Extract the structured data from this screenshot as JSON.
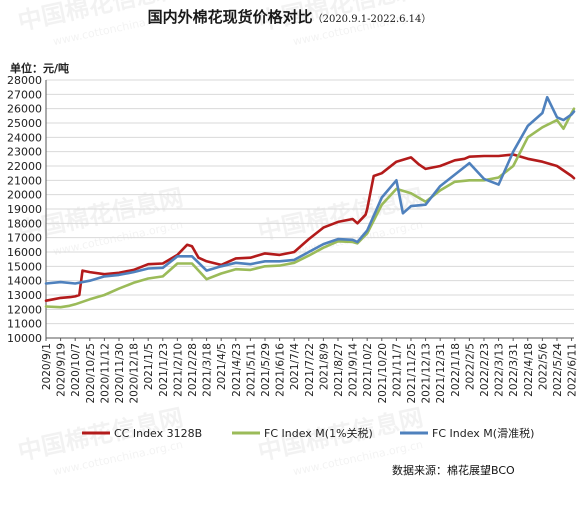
{
  "title": "国内外棉花现货价格对比",
  "subtitle": "（2020.9.1-2022.6.14）",
  "unit_label": "单位：元/吨",
  "source": "数据来源：棉花展望BCO",
  "watermark": [
    "中国棉花信息网",
    "www.cottonchina.org.cn"
  ],
  "colors": {
    "cc": "#b31b1b",
    "fc1": "#9bbb59",
    "fcs": "#4f81bd",
    "grid": "#d9d9d9",
    "axis": "#555555"
  },
  "chart_data": {
    "type": "line",
    "ylim": [
      10000,
      28000
    ],
    "ytick_step": 1000,
    "x_ticks": [
      "2020/9/1",
      "2020/9/19",
      "2020/10/7",
      "2020/10/25",
      "2020/11/12",
      "2020/11/30",
      "2020/12/18",
      "2021/1/5",
      "2021/1/23",
      "2021/2/10",
      "2021/2/28",
      "2021/3/18",
      "2021/4/5",
      "2021/4/23",
      "2021/5/11",
      "2021/5/29",
      "2021/6/16",
      "2021/7/4",
      "2021/7/22",
      "2021/8/9",
      "2021/8/27",
      "2021/9/14",
      "2021/10/2",
      "2021/10/20",
      "2021/11/7",
      "2021/11/25",
      "2021/12/13",
      "2021/12/31",
      "2022/1/18",
      "2022/2/5",
      "2022/2/23",
      "2022/3/13",
      "2022/3/31",
      "2022/4/18",
      "2022/5/6",
      "2022/5/24",
      "2022/6/11"
    ],
    "x_range": [
      "2020/9/1",
      "2022/6/14"
    ],
    "legend_position": "bottom",
    "series": [
      {
        "name": "CC Index 3128B",
        "color": "#b31b1b",
        "points": [
          [
            "2020/9/1",
            12600
          ],
          [
            "2020/9/10",
            12700
          ],
          [
            "2020/9/19",
            12800
          ],
          [
            "2020/10/1",
            12850
          ],
          [
            "2020/10/7",
            12900
          ],
          [
            "2020/10/12",
            13000
          ],
          [
            "2020/10/16",
            14700
          ],
          [
            "2020/10/25",
            14600
          ],
          [
            "2020/11/12",
            14450
          ],
          [
            "2020/11/30",
            14550
          ],
          [
            "2020/12/18",
            14750
          ],
          [
            "2021/1/5",
            15150
          ],
          [
            "2021/1/23",
            15200
          ],
          [
            "2021/2/10",
            15800
          ],
          [
            "2021/2/22",
            16500
          ],
          [
            "2021/2/28",
            16400
          ],
          [
            "2021/3/8",
            15600
          ],
          [
            "2021/3/18",
            15350
          ],
          [
            "2021/4/5",
            15100
          ],
          [
            "2021/4/23",
            15550
          ],
          [
            "2021/5/11",
            15600
          ],
          [
            "2021/5/29",
            15900
          ],
          [
            "2021/6/16",
            15800
          ],
          [
            "2021/7/4",
            16000
          ],
          [
            "2021/7/22",
            16900
          ],
          [
            "2021/8/9",
            17700
          ],
          [
            "2021/8/27",
            18100
          ],
          [
            "2021/9/14",
            18300
          ],
          [
            "2021/9/20",
            18000
          ],
          [
            "2021/9/30",
            18600
          ],
          [
            "2021/10/2",
            19000
          ],
          [
            "2021/10/10",
            21300
          ],
          [
            "2021/10/20",
            21500
          ],
          [
            "2021/11/7",
            22300
          ],
          [
            "2021/11/25",
            22600
          ],
          [
            "2021/12/5",
            22100
          ],
          [
            "2021/12/13",
            21800
          ],
          [
            "2021/12/31",
            22000
          ],
          [
            "2022/1/18",
            22400
          ],
          [
            "2022/1/30",
            22500
          ],
          [
            "2022/2/5",
            22650
          ],
          [
            "2022/2/23",
            22700
          ],
          [
            "2022/3/13",
            22700
          ],
          [
            "2022/3/31",
            22800
          ],
          [
            "2022/4/18",
            22500
          ],
          [
            "2022/5/6",
            22300
          ],
          [
            "2022/5/24",
            22000
          ],
          [
            "2022/6/11",
            21300
          ],
          [
            "2022/6/14",
            21150
          ]
        ]
      },
      {
        "name": "FC Index M(1%关税)",
        "color": "#9bbb59",
        "points": [
          [
            "2020/9/1",
            12200
          ],
          [
            "2020/9/19",
            12150
          ],
          [
            "2020/9/30",
            12250
          ],
          [
            "2020/10/7",
            12350
          ],
          [
            "2020/10/25",
            12700
          ],
          [
            "2020/11/12",
            13000
          ],
          [
            "2020/11/30",
            13450
          ],
          [
            "2020/12/18",
            13850
          ],
          [
            "2021/1/5",
            14150
          ],
          [
            "2021/1/23",
            14300
          ],
          [
            "2021/2/10",
            15200
          ],
          [
            "2021/2/28",
            15200
          ],
          [
            "2021/3/18",
            14100
          ],
          [
            "2021/4/5",
            14500
          ],
          [
            "2021/4/23",
            14800
          ],
          [
            "2021/5/11",
            14750
          ],
          [
            "2021/5/29",
            15000
          ],
          [
            "2021/6/16",
            15050
          ],
          [
            "2021/7/4",
            15250
          ],
          [
            "2021/7/22",
            15750
          ],
          [
            "2021/8/9",
            16300
          ],
          [
            "2021/8/27",
            16750
          ],
          [
            "2021/9/14",
            16700
          ],
          [
            "2021/9/20",
            16600
          ],
          [
            "2021/10/2",
            17300
          ],
          [
            "2021/10/20",
            19300
          ],
          [
            "2021/11/7",
            20400
          ],
          [
            "2021/11/25",
            20100
          ],
          [
            "2021/12/13",
            19500
          ],
          [
            "2021/12/31",
            20300
          ],
          [
            "2022/1/18",
            20900
          ],
          [
            "2022/2/5",
            21000
          ],
          [
            "2022/2/23",
            21000
          ],
          [
            "2022/3/13",
            21200
          ],
          [
            "2022/3/31",
            22000
          ],
          [
            "2022/4/18",
            24000
          ],
          [
            "2022/5/6",
            24700
          ],
          [
            "2022/5/24",
            25200
          ],
          [
            "2022/6/1",
            24600
          ],
          [
            "2022/6/11",
            25700
          ],
          [
            "2022/6/14",
            26000
          ]
        ]
      },
      {
        "name": "FC Index M(滑准税)",
        "color": "#4f81bd",
        "points": [
          [
            "2020/9/1",
            13800
          ],
          [
            "2020/9/19",
            13900
          ],
          [
            "2020/10/7",
            13800
          ],
          [
            "2020/10/25",
            14000
          ],
          [
            "2020/11/12",
            14300
          ],
          [
            "2020/11/30",
            14400
          ],
          [
            "2020/12/18",
            14600
          ],
          [
            "2021/1/5",
            14850
          ],
          [
            "2021/1/23",
            14900
          ],
          [
            "2021/2/10",
            15700
          ],
          [
            "2021/2/28",
            15700
          ],
          [
            "2021/3/18",
            14700
          ],
          [
            "2021/4/5",
            15000
          ],
          [
            "2021/4/23",
            15250
          ],
          [
            "2021/5/11",
            15150
          ],
          [
            "2021/5/29",
            15350
          ],
          [
            "2021/6/16",
            15350
          ],
          [
            "2021/7/4",
            15450
          ],
          [
            "2021/7/22",
            16000
          ],
          [
            "2021/8/9",
            16550
          ],
          [
            "2021/8/27",
            16900
          ],
          [
            "2021/9/14",
            16850
          ],
          [
            "2021/9/20",
            16700
          ],
          [
            "2021/10/2",
            17500
          ],
          [
            "2021/10/20",
            19800
          ],
          [
            "2021/11/7",
            21000
          ],
          [
            "2021/11/15",
            18700
          ],
          [
            "2021/11/25",
            19200
          ],
          [
            "2021/12/13",
            19300
          ],
          [
            "2021/12/31",
            20600
          ],
          [
            "2022/1/18",
            21400
          ],
          [
            "2022/2/5",
            22200
          ],
          [
            "2022/2/23",
            21100
          ],
          [
            "2022/3/13",
            20700
          ],
          [
            "2022/3/31",
            23000
          ],
          [
            "2022/4/18",
            24800
          ],
          [
            "2022/5/6",
            25700
          ],
          [
            "2022/5/12",
            26800
          ],
          [
            "2022/5/24",
            25400
          ],
          [
            "2022/6/1",
            25200
          ],
          [
            "2022/6/11",
            25600
          ],
          [
            "2022/6/14",
            25800
          ]
        ]
      }
    ]
  }
}
